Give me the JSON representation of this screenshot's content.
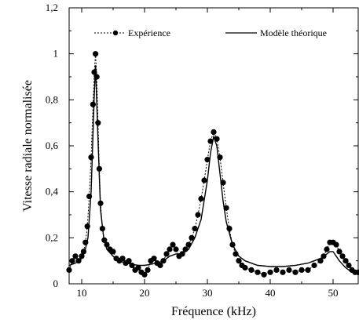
{
  "chart_data": {
    "type": "line",
    "xlabel": "Fréquence (kHz)",
    "ylabel": "Vitesse radiale normalisée",
    "xlim": [
      8,
      54
    ],
    "ylim": [
      0,
      1.2
    ],
    "x_ticks": [
      10,
      20,
      30,
      40,
      50
    ],
    "x_tick_labels": [
      "10",
      "20",
      "30",
      "40",
      "50"
    ],
    "y_ticks": [
      0,
      0.2,
      0.4,
      0.6,
      0.8,
      1.0,
      1.2
    ],
    "y_tick_labels": [
      "0",
      "0,2",
      "0,4",
      "0,6",
      "0,8",
      "1",
      "1,2"
    ],
    "grid": false,
    "legend_position": "top",
    "series": [
      {
        "name": "Expérience",
        "style": "dotted-line-with-filled-circles",
        "color": "#000000",
        "points": [
          [
            8.0,
            0.06
          ],
          [
            8.5,
            0.1
          ],
          [
            9.0,
            0.12
          ],
          [
            9.5,
            0.1
          ],
          [
            10.0,
            0.12
          ],
          [
            10.3,
            0.14
          ],
          [
            10.6,
            0.18
          ],
          [
            10.9,
            0.25
          ],
          [
            11.2,
            0.38
          ],
          [
            11.5,
            0.55
          ],
          [
            11.8,
            0.78
          ],
          [
            12.0,
            0.92
          ],
          [
            12.2,
            1.0
          ],
          [
            12.4,
            0.9
          ],
          [
            12.6,
            0.7
          ],
          [
            12.8,
            0.5
          ],
          [
            13.0,
            0.35
          ],
          [
            13.3,
            0.24
          ],
          [
            13.6,
            0.19
          ],
          [
            14.0,
            0.17
          ],
          [
            14.5,
            0.15
          ],
          [
            15.0,
            0.14
          ],
          [
            15.5,
            0.11
          ],
          [
            16.0,
            0.1
          ],
          [
            16.5,
            0.11
          ],
          [
            17.0,
            0.09
          ],
          [
            17.5,
            0.1
          ],
          [
            18.0,
            0.08
          ],
          [
            18.5,
            0.06
          ],
          [
            19.0,
            0.07
          ],
          [
            19.5,
            0.05
          ],
          [
            20.0,
            0.04
          ],
          [
            20.5,
            0.06
          ],
          [
            21.0,
            0.1
          ],
          [
            21.5,
            0.11
          ],
          [
            22.0,
            0.09
          ],
          [
            22.5,
            0.08
          ],
          [
            23.0,
            0.1
          ],
          [
            23.5,
            0.13
          ],
          [
            24.0,
            0.15
          ],
          [
            24.5,
            0.17
          ],
          [
            25.0,
            0.15
          ],
          [
            25.5,
            0.12
          ],
          [
            26.0,
            0.13
          ],
          [
            26.5,
            0.15
          ],
          [
            27.0,
            0.17
          ],
          [
            27.5,
            0.2
          ],
          [
            28.0,
            0.24
          ],
          [
            28.5,
            0.3
          ],
          [
            29.0,
            0.37
          ],
          [
            29.5,
            0.45
          ],
          [
            30.0,
            0.54
          ],
          [
            30.5,
            0.62
          ],
          [
            31.0,
            0.66
          ],
          [
            31.5,
            0.63
          ],
          [
            32.0,
            0.55
          ],
          [
            32.5,
            0.44
          ],
          [
            33.0,
            0.33
          ],
          [
            33.5,
            0.24
          ],
          [
            34.0,
            0.17
          ],
          [
            34.5,
            0.13
          ],
          [
            35.0,
            0.1
          ],
          [
            35.5,
            0.08
          ],
          [
            36.0,
            0.07
          ],
          [
            37.0,
            0.06
          ],
          [
            38.0,
            0.05
          ],
          [
            39.0,
            0.04
          ],
          [
            40.0,
            0.05
          ],
          [
            41.0,
            0.06
          ],
          [
            42.0,
            0.05
          ],
          [
            43.0,
            0.06
          ],
          [
            44.0,
            0.05
          ],
          [
            45.0,
            0.06
          ],
          [
            46.0,
            0.06
          ],
          [
            47.0,
            0.08
          ],
          [
            48.0,
            0.1
          ],
          [
            48.5,
            0.12
          ],
          [
            49.0,
            0.15
          ],
          [
            49.5,
            0.18
          ],
          [
            50.0,
            0.18
          ],
          [
            50.5,
            0.17
          ],
          [
            51.0,
            0.14
          ],
          [
            51.5,
            0.12
          ],
          [
            52.0,
            0.1
          ],
          [
            52.5,
            0.08
          ],
          [
            53.0,
            0.06
          ],
          [
            53.5,
            0.05
          ],
          [
            54.0,
            0.05
          ]
        ]
      },
      {
        "name": "Modèle théorique",
        "style": "solid",
        "color": "#000000",
        "points": [
          [
            8.0,
            0.08
          ],
          [
            9.0,
            0.09
          ],
          [
            10.0,
            0.11
          ],
          [
            10.5,
            0.14
          ],
          [
            11.0,
            0.2
          ],
          [
            11.5,
            0.4
          ],
          [
            12.0,
            0.82
          ],
          [
            12.2,
            0.95
          ],
          [
            12.5,
            0.7
          ],
          [
            13.0,
            0.32
          ],
          [
            13.5,
            0.2
          ],
          [
            14.0,
            0.15
          ],
          [
            15.0,
            0.12
          ],
          [
            16.0,
            0.1
          ],
          [
            17.0,
            0.09
          ],
          [
            18.0,
            0.085
          ],
          [
            19.0,
            0.08
          ],
          [
            20.0,
            0.08
          ],
          [
            21.0,
            0.085
          ],
          [
            22.0,
            0.09
          ],
          [
            23.0,
            0.1
          ],
          [
            24.0,
            0.12
          ],
          [
            25.0,
            0.13
          ],
          [
            26.0,
            0.13
          ],
          [
            27.0,
            0.15
          ],
          [
            28.0,
            0.2
          ],
          [
            29.0,
            0.28
          ],
          [
            30.0,
            0.45
          ],
          [
            30.5,
            0.57
          ],
          [
            31.0,
            0.64
          ],
          [
            31.5,
            0.6
          ],
          [
            32.0,
            0.48
          ],
          [
            32.5,
            0.36
          ],
          [
            33.0,
            0.27
          ],
          [
            34.0,
            0.17
          ],
          [
            35.0,
            0.12
          ],
          [
            36.0,
            0.1
          ],
          [
            38.0,
            0.08
          ],
          [
            40.0,
            0.075
          ],
          [
            42.0,
            0.075
          ],
          [
            44.0,
            0.08
          ],
          [
            46.0,
            0.09
          ],
          [
            47.0,
            0.1
          ],
          [
            48.0,
            0.11
          ],
          [
            49.0,
            0.13
          ],
          [
            49.5,
            0.14
          ],
          [
            50.0,
            0.14
          ],
          [
            50.5,
            0.12
          ],
          [
            51.0,
            0.1
          ],
          [
            52.0,
            0.07
          ],
          [
            53.0,
            0.05
          ],
          [
            54.0,
            0.04
          ]
        ]
      }
    ]
  }
}
